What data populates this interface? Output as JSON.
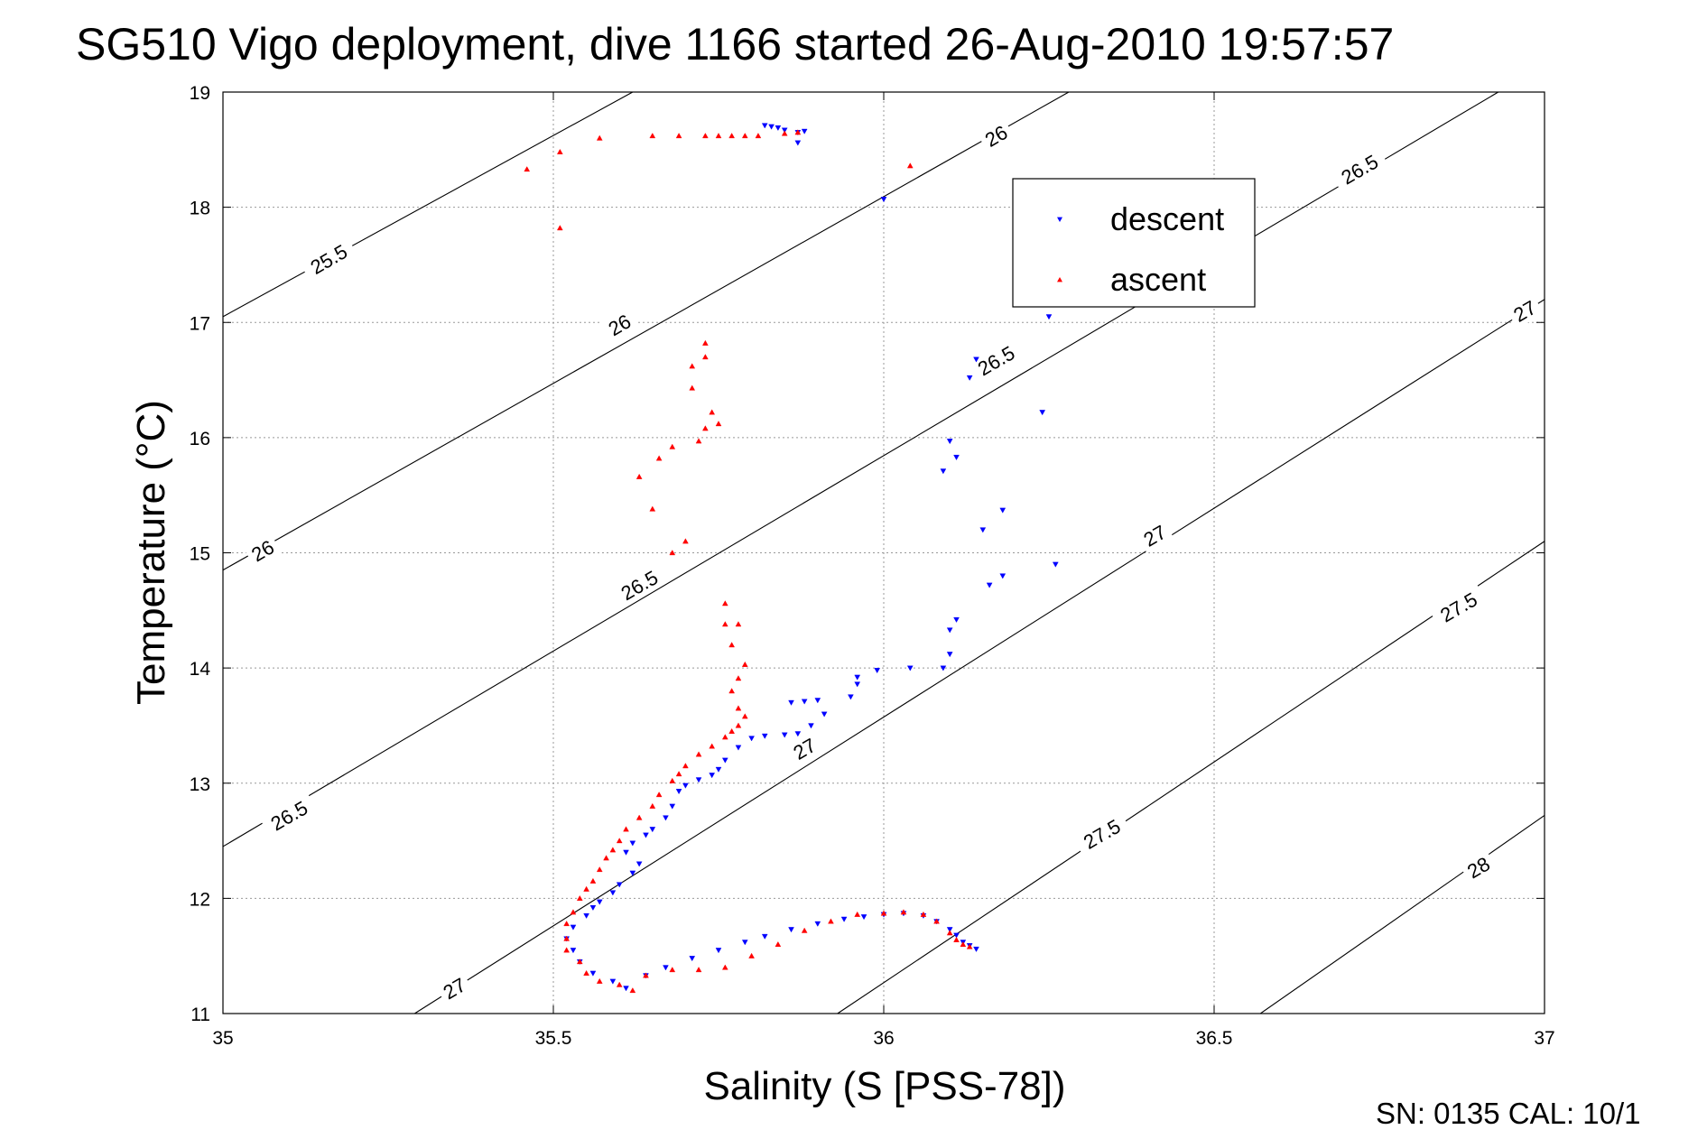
{
  "chart_data": {
    "type": "scatter",
    "title": "SG510 Vigo deployment, dive 1166 started 26-Aug-2010 19:57:57",
    "xlabel": "Salinity (S [PSS-78])",
    "ylabel": "Temperature (°C)",
    "xlim": [
      35,
      37
    ],
    "ylim": [
      11,
      19
    ],
    "xticks": [
      35,
      35.5,
      36,
      36.5,
      37
    ],
    "yticks": [
      11,
      12,
      13,
      14,
      15,
      16,
      17,
      18,
      19
    ],
    "xtick_labels": [
      "35",
      "35.5",
      "36",
      "36.5",
      "37"
    ],
    "ytick_labels": [
      "11",
      "12",
      "13",
      "14",
      "15",
      "16",
      "17",
      "18",
      "19"
    ],
    "grid": true,
    "legend_position": "top-right",
    "density_contours": {
      "line_color": "#000000",
      "lines": [
        {
          "label": "25.5",
          "points": [
            [
              35.0,
              17.05
            ],
            [
              35.62,
              19.0
            ]
          ]
        },
        {
          "label": "26",
          "points": [
            [
              35.0,
              14.85
            ],
            [
              36.28,
              19.0
            ]
          ]
        },
        {
          "label": "26.5",
          "points": [
            [
              35.0,
              12.45
            ],
            [
              36.93,
              19.0
            ]
          ]
        },
        {
          "label": "27",
          "points": [
            [
              35.29,
              11.0
            ],
            [
              37.0,
              17.2
            ]
          ]
        },
        {
          "label": "27.5",
          "points": [
            [
              35.93,
              11.0
            ],
            [
              37.0,
              15.1
            ]
          ]
        },
        {
          "label": "28",
          "points": [
            [
              36.57,
              11.0
            ],
            [
              37.0,
              12.72
            ]
          ]
        }
      ],
      "labels": [
        {
          "text": "25.5",
          "x": 35.16,
          "y": 17.55
        },
        {
          "text": "26",
          "x": 36.17,
          "y": 18.62
        },
        {
          "text": "26.5",
          "x": 36.72,
          "y": 18.33
        },
        {
          "text": "26",
          "x": 35.6,
          "y": 16.98
        },
        {
          "text": "26.5",
          "x": 36.17,
          "y": 16.67
        },
        {
          "text": "27",
          "x": 36.97,
          "y": 17.1
        },
        {
          "text": "26",
          "x": 35.06,
          "y": 15.02
        },
        {
          "text": "26.5",
          "x": 35.63,
          "y": 14.72
        },
        {
          "text": "27",
          "x": 36.41,
          "y": 15.15
        },
        {
          "text": "27.5",
          "x": 36.87,
          "y": 14.53
        },
        {
          "text": "27",
          "x": 35.88,
          "y": 13.3
        },
        {
          "text": "26.5",
          "x": 35.1,
          "y": 12.72
        },
        {
          "text": "27.5",
          "x": 36.33,
          "y": 12.56
        },
        {
          "text": "27",
          "x": 35.35,
          "y": 11.22
        },
        {
          "text": "28",
          "x": 36.9,
          "y": 12.27
        }
      ]
    },
    "series": [
      {
        "name": "descent",
        "color": "#0000ff",
        "marker": "triangle-down",
        "points": [
          [
            35.82,
            18.71
          ],
          [
            35.83,
            18.7
          ],
          [
            35.84,
            18.69
          ],
          [
            35.85,
            18.67
          ],
          [
            35.87,
            18.65
          ],
          [
            35.88,
            18.66
          ],
          [
            35.87,
            18.56
          ],
          [
            36.0,
            18.07
          ],
          [
            36.25,
            17.05
          ],
          [
            36.14,
            16.68
          ],
          [
            36.13,
            16.52
          ],
          [
            36.24,
            16.22
          ],
          [
            36.1,
            15.97
          ],
          [
            36.11,
            15.83
          ],
          [
            36.09,
            15.71
          ],
          [
            36.18,
            15.37
          ],
          [
            36.15,
            15.2
          ],
          [
            36.26,
            14.9
          ],
          [
            36.18,
            14.8
          ],
          [
            36.16,
            14.72
          ],
          [
            36.11,
            14.42
          ],
          [
            36.1,
            14.33
          ],
          [
            36.1,
            14.12
          ],
          [
            36.09,
            14.0
          ],
          [
            36.04,
            14.0
          ],
          [
            35.99,
            13.98
          ],
          [
            35.96,
            13.92
          ],
          [
            35.96,
            13.86
          ],
          [
            35.95,
            13.75
          ],
          [
            35.9,
            13.72
          ],
          [
            35.88,
            13.71
          ],
          [
            35.86,
            13.7
          ],
          [
            35.91,
            13.6
          ],
          [
            35.89,
            13.5
          ],
          [
            35.87,
            13.43
          ],
          [
            35.85,
            13.42
          ],
          [
            35.82,
            13.41
          ],
          [
            35.8,
            13.39
          ],
          [
            35.78,
            13.31
          ],
          [
            35.76,
            13.2
          ],
          [
            35.75,
            13.12
          ],
          [
            35.74,
            13.07
          ],
          [
            35.72,
            13.03
          ],
          [
            35.7,
            12.98
          ],
          [
            35.69,
            12.93
          ],
          [
            35.68,
            12.8
          ],
          [
            35.67,
            12.7
          ],
          [
            35.65,
            12.6
          ],
          [
            35.64,
            12.55
          ],
          [
            35.62,
            12.48
          ],
          [
            35.61,
            12.4
          ],
          [
            35.63,
            12.3
          ],
          [
            35.62,
            12.22
          ],
          [
            35.6,
            12.12
          ],
          [
            35.59,
            12.05
          ],
          [
            35.57,
            11.97
          ],
          [
            35.56,
            11.92
          ],
          [
            35.55,
            11.85
          ],
          [
            35.53,
            11.75
          ],
          [
            35.52,
            11.65
          ],
          [
            35.53,
            11.55
          ],
          [
            35.54,
            11.45
          ],
          [
            35.56,
            11.35
          ],
          [
            35.59,
            11.28
          ],
          [
            35.61,
            11.22
          ],
          [
            35.64,
            11.33
          ],
          [
            35.67,
            11.4
          ],
          [
            35.71,
            11.48
          ],
          [
            35.75,
            11.55
          ],
          [
            35.79,
            11.62
          ],
          [
            35.82,
            11.67
          ],
          [
            35.86,
            11.73
          ],
          [
            35.9,
            11.78
          ],
          [
            35.94,
            11.82
          ],
          [
            35.97,
            11.84
          ],
          [
            36.0,
            11.86
          ],
          [
            36.03,
            11.87
          ],
          [
            36.06,
            11.85
          ],
          [
            36.08,
            11.8
          ],
          [
            36.1,
            11.73
          ],
          [
            36.11,
            11.68
          ],
          [
            36.12,
            11.62
          ],
          [
            36.13,
            11.59
          ],
          [
            36.14,
            11.56
          ]
        ]
      },
      {
        "name": "ascent",
        "color": "#ff0000",
        "marker": "triangle-up",
        "points": [
          [
            35.46,
            18.33
          ],
          [
            35.51,
            18.48
          ],
          [
            35.51,
            17.82
          ],
          [
            35.57,
            18.6
          ],
          [
            35.65,
            18.62
          ],
          [
            35.69,
            18.62
          ],
          [
            35.73,
            18.62
          ],
          [
            35.75,
            18.62
          ],
          [
            35.77,
            18.62
          ],
          [
            35.79,
            18.62
          ],
          [
            35.81,
            18.62
          ],
          [
            35.85,
            18.64
          ],
          [
            35.87,
            18.65
          ],
          [
            36.04,
            18.36
          ],
          [
            35.73,
            16.82
          ],
          [
            35.73,
            16.7
          ],
          [
            35.71,
            16.62
          ],
          [
            35.71,
            16.43
          ],
          [
            35.74,
            16.22
          ],
          [
            35.75,
            16.12
          ],
          [
            35.73,
            16.08
          ],
          [
            35.72,
            15.97
          ],
          [
            35.68,
            15.92
          ],
          [
            35.66,
            15.82
          ],
          [
            35.63,
            15.66
          ],
          [
            35.65,
            15.38
          ],
          [
            35.7,
            15.1
          ],
          [
            35.68,
            15.0
          ],
          [
            35.76,
            14.56
          ],
          [
            35.76,
            14.38
          ],
          [
            35.78,
            14.38
          ],
          [
            35.77,
            14.2
          ],
          [
            35.79,
            14.03
          ],
          [
            35.78,
            13.91
          ],
          [
            35.77,
            13.8
          ],
          [
            35.78,
            13.65
          ],
          [
            35.79,
            13.58
          ],
          [
            35.78,
            13.5
          ],
          [
            35.77,
            13.45
          ],
          [
            35.76,
            13.4
          ],
          [
            35.74,
            13.32
          ],
          [
            35.72,
            13.25
          ],
          [
            35.7,
            13.15
          ],
          [
            35.69,
            13.08
          ],
          [
            35.68,
            13.02
          ],
          [
            35.66,
            12.9
          ],
          [
            35.65,
            12.8
          ],
          [
            35.63,
            12.7
          ],
          [
            35.61,
            12.6
          ],
          [
            35.6,
            12.5
          ],
          [
            35.59,
            12.42
          ],
          [
            35.58,
            12.35
          ],
          [
            35.57,
            12.25
          ],
          [
            35.56,
            12.15
          ],
          [
            35.55,
            12.08
          ],
          [
            35.54,
            12.0
          ],
          [
            35.53,
            11.88
          ],
          [
            35.52,
            11.78
          ],
          [
            35.52,
            11.65
          ],
          [
            35.52,
            11.55
          ],
          [
            35.54,
            11.45
          ],
          [
            35.55,
            11.35
          ],
          [
            35.57,
            11.28
          ],
          [
            35.6,
            11.25
          ],
          [
            35.62,
            11.2
          ],
          [
            35.64,
            11.33
          ],
          [
            35.68,
            11.38
          ],
          [
            35.72,
            11.38
          ],
          [
            35.76,
            11.4
          ],
          [
            35.8,
            11.5
          ],
          [
            35.84,
            11.6
          ],
          [
            35.88,
            11.72
          ],
          [
            35.92,
            11.8
          ],
          [
            35.96,
            11.86
          ],
          [
            36.0,
            11.87
          ],
          [
            36.03,
            11.88
          ],
          [
            36.06,
            11.86
          ],
          [
            36.08,
            11.8
          ],
          [
            36.1,
            11.7
          ],
          [
            36.11,
            11.64
          ],
          [
            36.12,
            11.6
          ],
          [
            36.13,
            11.58
          ]
        ]
      }
    ]
  },
  "footer": {
    "sn_text": "SN: 0135  CAL: 10/1"
  }
}
